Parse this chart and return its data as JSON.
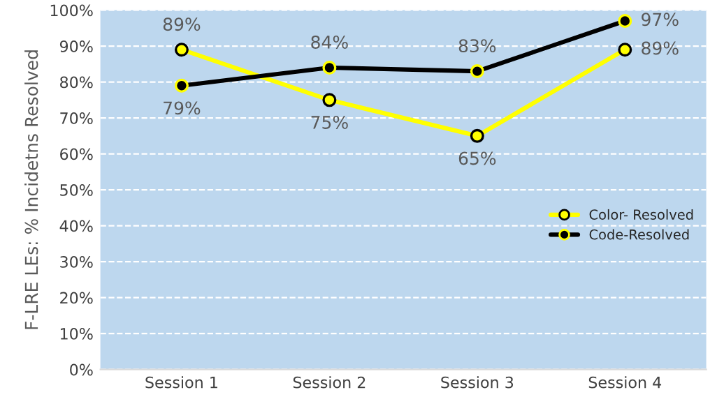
{
  "chart_data": {
    "type": "line",
    "ylabel": "F-LRE LEs: % Incidetns Resolved",
    "categories": [
      "Session 1",
      "Session 2",
      "Session 3",
      "Session 4"
    ],
    "series": [
      {
        "name": "Color- Resolved",
        "color": "#ffff00",
        "values": [
          89,
          75,
          65,
          89
        ],
        "value_labels": [
          "89%",
          "75%",
          "65%",
          "89%"
        ]
      },
      {
        "name": "Code-Resolved",
        "color": "#000000",
        "values": [
          79,
          84,
          83,
          97
        ],
        "value_labels": [
          "79%",
          "84%",
          "83%",
          "97%"
        ]
      }
    ],
    "ylim": [
      0,
      100
    ],
    "yticks": [
      {
        "value": 0,
        "label": "0%"
      },
      {
        "value": 10,
        "label": "10%"
      },
      {
        "value": 20,
        "label": "20%"
      },
      {
        "value": 30,
        "label": "30%"
      },
      {
        "value": 40,
        "label": "40%"
      },
      {
        "value": 50,
        "label": "50%"
      },
      {
        "value": 60,
        "label": "60%"
      },
      {
        "value": 70,
        "label": "70%"
      },
      {
        "value": 80,
        "label": "80%"
      },
      {
        "value": 90,
        "label": "90%"
      },
      {
        "value": 100,
        "label": "100%"
      }
    ],
    "grid": "y",
    "legend": "right",
    "marker": "circle",
    "line_style": "solid"
  }
}
